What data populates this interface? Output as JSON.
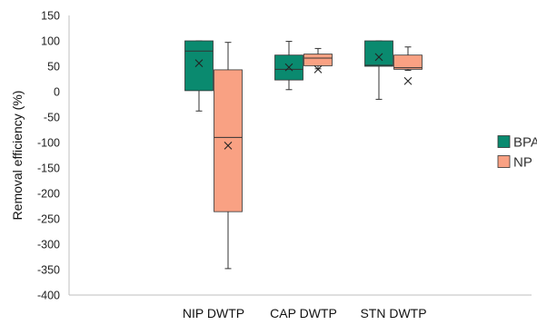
{
  "chart_data": {
    "type": "box",
    "title": "",
    "xlabel": "",
    "ylabel": "Removal efficiency (%)",
    "ylim": [
      -400,
      150
    ],
    "yticks": [
      150,
      100,
      50,
      0,
      -50,
      -100,
      -150,
      -200,
      -250,
      -300,
      -350,
      -400
    ],
    "grid": false,
    "legend_position": "right",
    "categories": [
      "NIP DWTP",
      "CAP DWTP",
      "STN DWTP"
    ],
    "series": [
      {
        "name": "BPA",
        "color": "#0a8a6f",
        "boxes": [
          {
            "min": -38,
            "q1": 2,
            "median": 80,
            "q3": 100,
            "max": 100,
            "mean": 56
          },
          {
            "min": 4,
            "q1": 23,
            "median": 44,
            "q3": 72,
            "max": 99,
            "mean": 48
          },
          {
            "min": -15,
            "q1": 50,
            "median": 52,
            "q3": 100,
            "max": 100,
            "mean": 68
          }
        ]
      },
      {
        "name": "NP",
        "color": "#f9a183",
        "boxes": [
          {
            "min": -348,
            "q1": -236,
            "median": -90,
            "q3": 43,
            "max": 97,
            "mean": -106
          },
          {
            "min": 45,
            "q1": 51,
            "median": 66,
            "q3": 74,
            "max": 85,
            "mean": 44
          },
          {
            "min": 42,
            "q1": 44,
            "median": 47,
            "q3": 72,
            "max": 88,
            "mean": 21
          }
        ]
      }
    ]
  }
}
